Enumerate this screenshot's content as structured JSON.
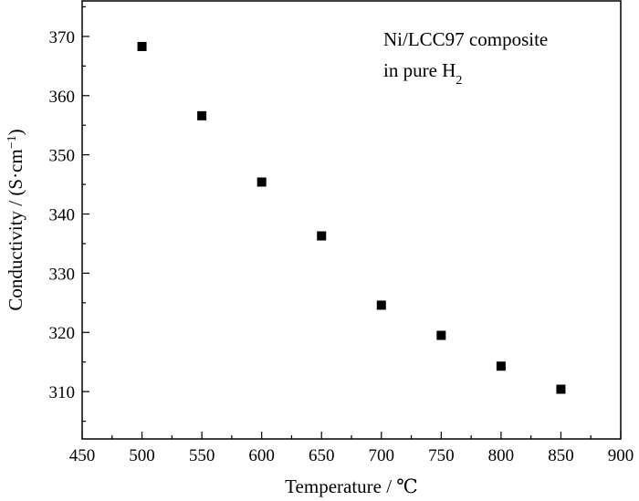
{
  "chart_data": {
    "type": "scatter",
    "title": "",
    "xlabel": "Temperature / ℃",
    "ylabel_main": "Conductivity / (S·cm",
    "ylabel_sup": "−1",
    "ylabel_end": ")",
    "xlim": [
      450,
      900
    ],
    "ylim": [
      302,
      376
    ],
    "x_ticks": [
      450,
      500,
      550,
      600,
      650,
      700,
      750,
      800,
      850,
      900
    ],
    "y_ticks": [
      310,
      320,
      330,
      340,
      350,
      360,
      370
    ],
    "grid": false,
    "legend": "none",
    "annotation": {
      "line1": "Ni/LCC97 composite",
      "line2_main": "in pure H",
      "line2_sub": "2"
    },
    "series": [
      {
        "marker": "square",
        "color": "#000000",
        "x": [
          500,
          550,
          600,
          650,
          700,
          750,
          800,
          850
        ],
        "y": [
          368.3,
          356.6,
          345.4,
          336.3,
          324.6,
          319.5,
          314.3,
          310.4
        ]
      }
    ]
  }
}
